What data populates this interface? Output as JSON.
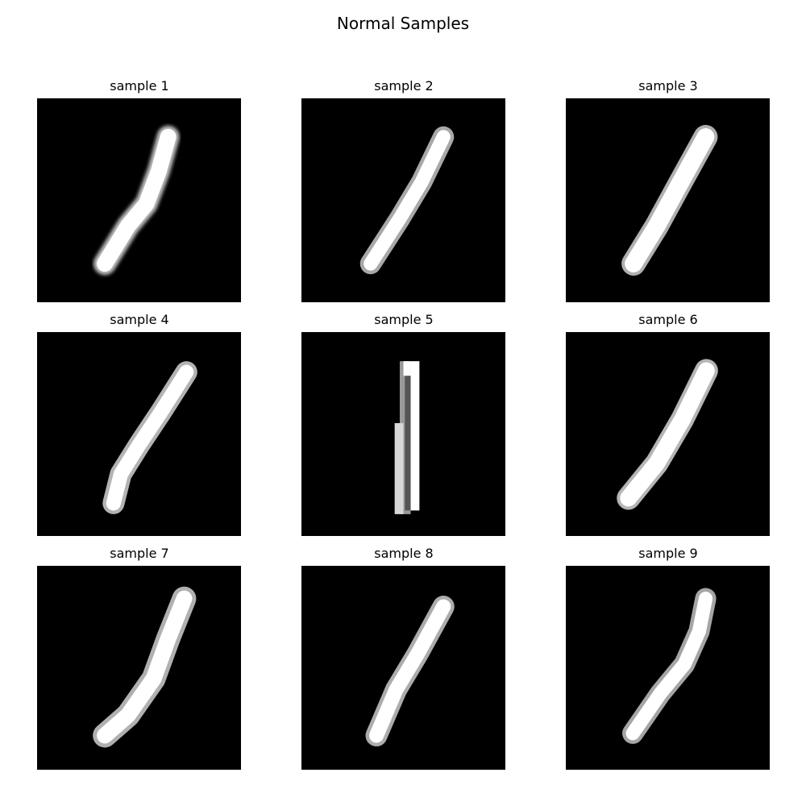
{
  "figure": {
    "title": "Normal Samples"
  },
  "panels": [
    {
      "title": "sample 1"
    },
    {
      "title": "sample 2"
    },
    {
      "title": "sample 3"
    },
    {
      "title": "sample 4"
    },
    {
      "title": "sample 5"
    },
    {
      "title": "sample 6"
    },
    {
      "title": "sample 7"
    },
    {
      "title": "sample 8"
    },
    {
      "title": "sample 9"
    }
  ]
}
